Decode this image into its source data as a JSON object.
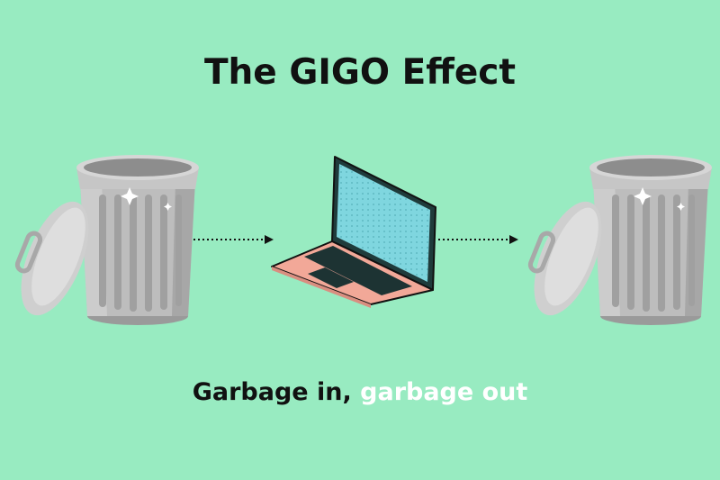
{
  "title": "The GIGO Effect",
  "caption": {
    "part1": "Garbage in, ",
    "part2": "garbage out"
  },
  "icons": {
    "left": "trash-can-icon",
    "middle": "laptop-icon",
    "right": "trash-can-icon",
    "flow": "dotted-arrow-icon"
  },
  "colors": {
    "background": "#98ebc1",
    "text": "#111111",
    "caption_highlight": "#ffffff",
    "laptop_base": "#f2a898",
    "laptop_screen": "#7fd6df",
    "trash": "#b9b9b9"
  }
}
